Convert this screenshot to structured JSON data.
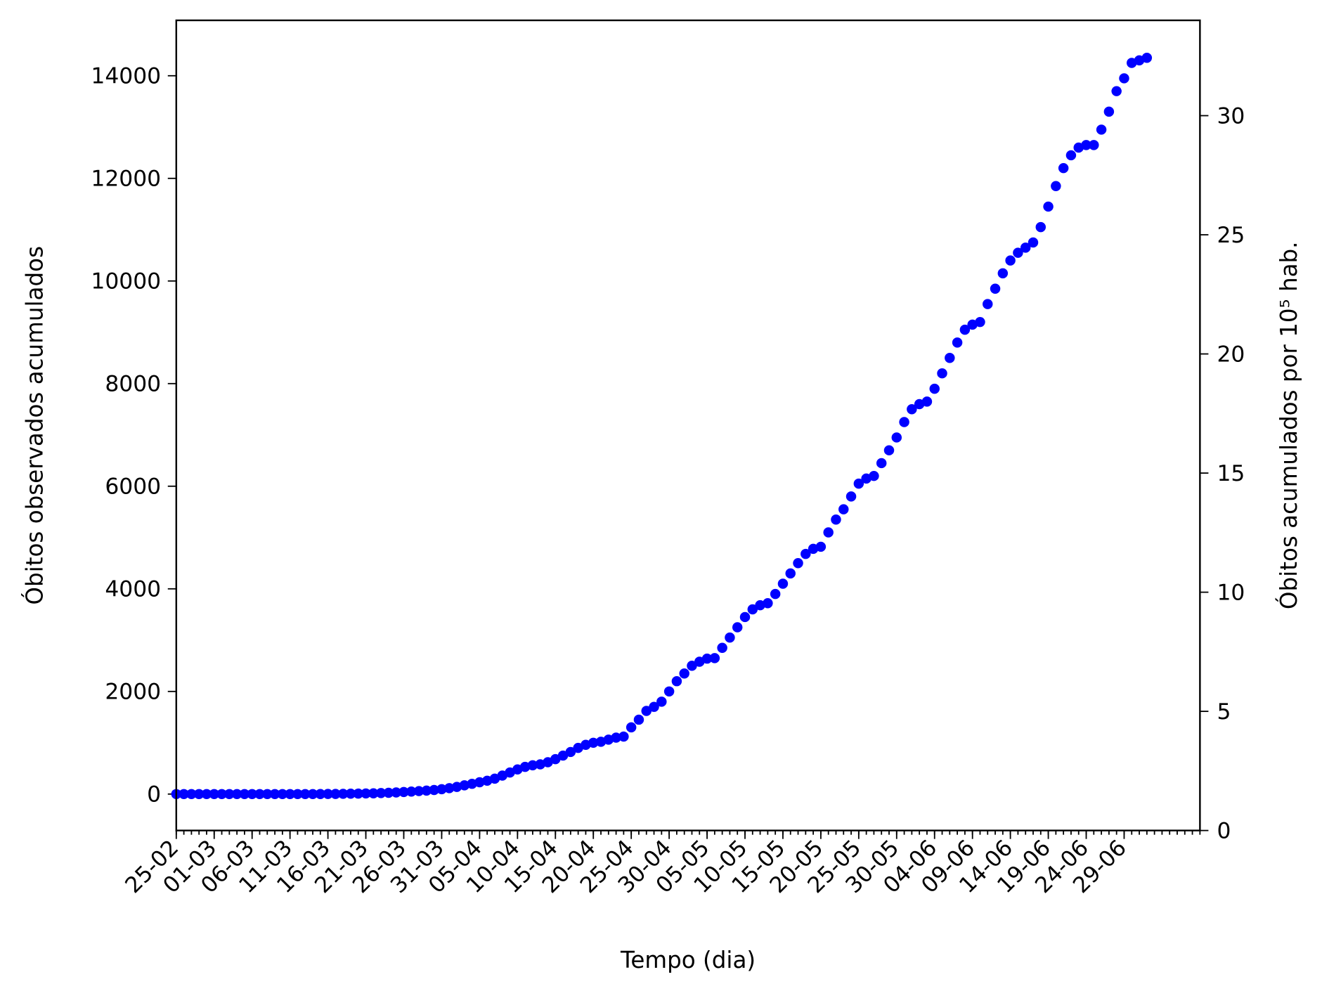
{
  "chart_data": {
    "type": "scatter",
    "xlabel": "Tempo (dia)",
    "ylabel": "Óbitos observados acumulados",
    "y2label": "Óbitos acumulados por 10⁵ hab.",
    "x": [
      "25-02",
      "26-02",
      "27-02",
      "28-02",
      "29-02",
      "01-03",
      "02-03",
      "03-03",
      "04-03",
      "05-03",
      "06-03",
      "07-03",
      "08-03",
      "09-03",
      "10-03",
      "11-03",
      "12-03",
      "13-03",
      "14-03",
      "15-03",
      "16-03",
      "17-03",
      "18-03",
      "19-03",
      "20-03",
      "21-03",
      "22-03",
      "23-03",
      "24-03",
      "25-03",
      "26-03",
      "27-03",
      "28-03",
      "29-03",
      "30-03",
      "31-03",
      "01-04",
      "02-04",
      "03-04",
      "04-04",
      "05-04",
      "06-04",
      "07-04",
      "08-04",
      "09-04",
      "10-04",
      "11-04",
      "12-04",
      "13-04",
      "14-04",
      "15-04",
      "16-04",
      "17-04",
      "18-04",
      "19-04",
      "20-04",
      "21-04",
      "22-04",
      "23-04",
      "24-04",
      "25-04",
      "26-04",
      "27-04",
      "28-04",
      "29-04",
      "30-04",
      "01-05",
      "02-05",
      "03-05",
      "04-05",
      "05-05",
      "06-05",
      "07-05",
      "08-05",
      "09-05",
      "10-05",
      "11-05",
      "12-05",
      "13-05",
      "14-05",
      "15-05",
      "16-05",
      "17-05",
      "18-05",
      "19-05",
      "20-05",
      "21-05",
      "22-05",
      "23-05",
      "24-05",
      "25-05",
      "26-05",
      "27-05",
      "28-05",
      "29-05",
      "30-05",
      "31-05",
      "01-06",
      "02-06",
      "03-06",
      "04-06",
      "05-06",
      "06-06",
      "07-06",
      "08-06",
      "09-06",
      "10-06",
      "11-06",
      "12-06",
      "13-06",
      "14-06",
      "15-06",
      "16-06",
      "17-06",
      "18-06",
      "19-06",
      "20-06",
      "21-06",
      "22-06",
      "23-06",
      "24-06",
      "25-06",
      "26-06",
      "27-06",
      "28-06",
      "29-06",
      "30-06",
      "01-07",
      "02-07"
    ],
    "series": [
      {
        "name": "Óbitos",
        "color": "#0000ff",
        "values": [
          0,
          0,
          0,
          0,
          0,
          0,
          0,
          0,
          0,
          0,
          0,
          0,
          0,
          0,
          0,
          0,
          0,
          0,
          0,
          1,
          2,
          3,
          5,
          7,
          9,
          12,
          15,
          20,
          25,
          32,
          40,
          48,
          58,
          68,
          80,
          95,
          115,
          140,
          170,
          200,
          230,
          260,
          300,
          360,
          420,
          480,
          530,
          560,
          580,
          620,
          680,
          750,
          820,
          900,
          960,
          1000,
          1020,
          1060,
          1100,
          1120,
          1300,
          1450,
          1620,
          1700,
          1800,
          2000,
          2200,
          2350,
          2500,
          2580,
          2640,
          2650,
          2850,
          3050,
          3250,
          3450,
          3600,
          3680,
          3720,
          3900,
          4100,
          4300,
          4500,
          4680,
          4780,
          4820,
          5100,
          5350,
          5550,
          5800,
          6050,
          6150,
          6200,
          6450,
          6700,
          6950,
          7250,
          7500,
          7600,
          7650,
          7900,
          8200,
          8500,
          8800,
          9050,
          9150,
          9200,
          9550,
          9850,
          10150,
          10400,
          10550,
          10650,
          10750,
          11050,
          11450,
          11850,
          12200,
          12450,
          12600,
          12650,
          12650,
          12950,
          13300,
          13700,
          13950,
          14250,
          14300,
          14350
        ]
      }
    ],
    "xlim": [
      0,
      135
    ],
    "xticks": [
      "25-02",
      "01-03",
      "06-03",
      "11-03",
      "16-03",
      "21-03",
      "26-03",
      "31-03",
      "05-04",
      "10-04",
      "15-04",
      "20-04",
      "25-04",
      "30-04",
      "05-05",
      "10-05",
      "15-05",
      "20-05",
      "25-05",
      "30-05",
      "04-06",
      "09-06",
      "14-06",
      "19-06",
      "24-06",
      "29-06"
    ],
    "ylim": [
      -710,
      15080
    ],
    "yticks": [
      0,
      2000,
      4000,
      6000,
      8000,
      10000,
      12000,
      14000
    ],
    "y2lim": [
      0,
      34
    ],
    "y2ticks": [
      0,
      5,
      10,
      15,
      20,
      25,
      30
    ]
  }
}
